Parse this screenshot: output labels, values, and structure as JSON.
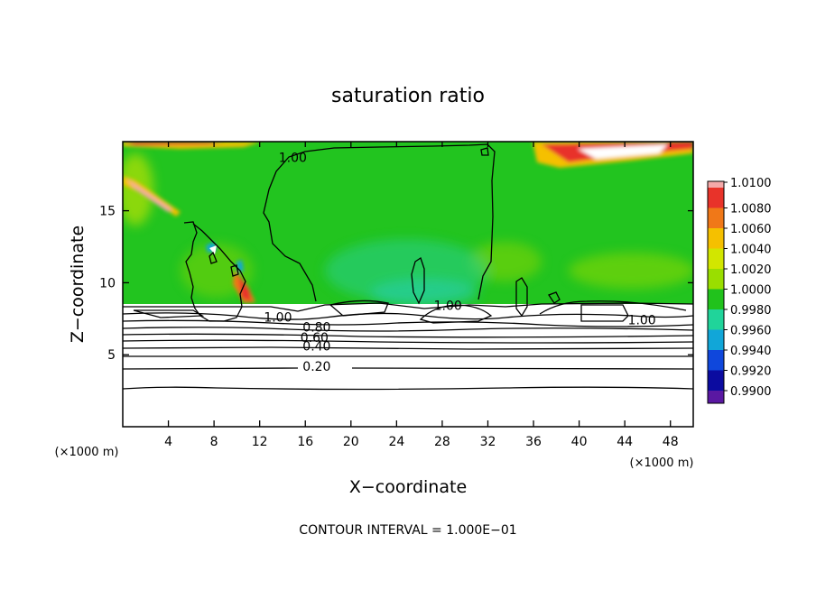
{
  "chart_data": {
    "type": "heatmap",
    "title": "saturation ratio",
    "xlabel": "X−coordinate",
    "ylabel": "Z−coordinate",
    "x_unit_left": "(×1000 m)",
    "x_unit_right": "(×1000 m)",
    "footer": "CONTOUR INTERVAL =  1.000E−01",
    "xlim": [
      0,
      50
    ],
    "ylim": [
      0,
      19.8
    ],
    "x_ticks": [
      4,
      8,
      12,
      16,
      20,
      24,
      28,
      32,
      36,
      40,
      44,
      48
    ],
    "x_tick_labels": [
      "4",
      "8",
      "12",
      "16",
      "20",
      "24",
      "28",
      "32",
      "36",
      "40",
      "44",
      "48"
    ],
    "y_ticks": [
      5,
      10,
      15
    ],
    "y_tick_labels": [
      "5",
      "10",
      "15"
    ],
    "colorbar": {
      "labels": [
        "1.0100",
        "1.0080",
        "1.0060",
        "1.0040",
        "1.0020",
        "1.0000",
        "0.9980",
        "0.9960",
        "0.9940",
        "0.9920",
        "0.9900"
      ],
      "colors": [
        "#f4a9a9",
        "#e8332a",
        "#f07818",
        "#f5c000",
        "#d2e600",
        "#9ade00",
        "#21c21c",
        "#20d49a",
        "#11a6d8",
        "#0f47dc",
        "#0b0ba0",
        "#5a18a2"
      ]
    },
    "contour_labels": [
      {
        "text": "1.00",
        "x": 14.9,
        "z": 18.4
      },
      {
        "text": "1.00",
        "x": 13.6,
        "z": 7.3
      },
      {
        "text": "0.80",
        "x": 17.0,
        "z": 6.6
      },
      {
        "text": "0.60",
        "x": 16.8,
        "z": 5.9
      },
      {
        "text": "0.40",
        "x": 17.0,
        "z": 5.3
      },
      {
        "text": "0.20",
        "x": 17.0,
        "z": 3.9
      },
      {
        "text": "1.00",
        "x": 28.5,
        "z": 8.1
      },
      {
        "text": "1.00",
        "x": 45.5,
        "z": 7.1
      }
    ]
  }
}
